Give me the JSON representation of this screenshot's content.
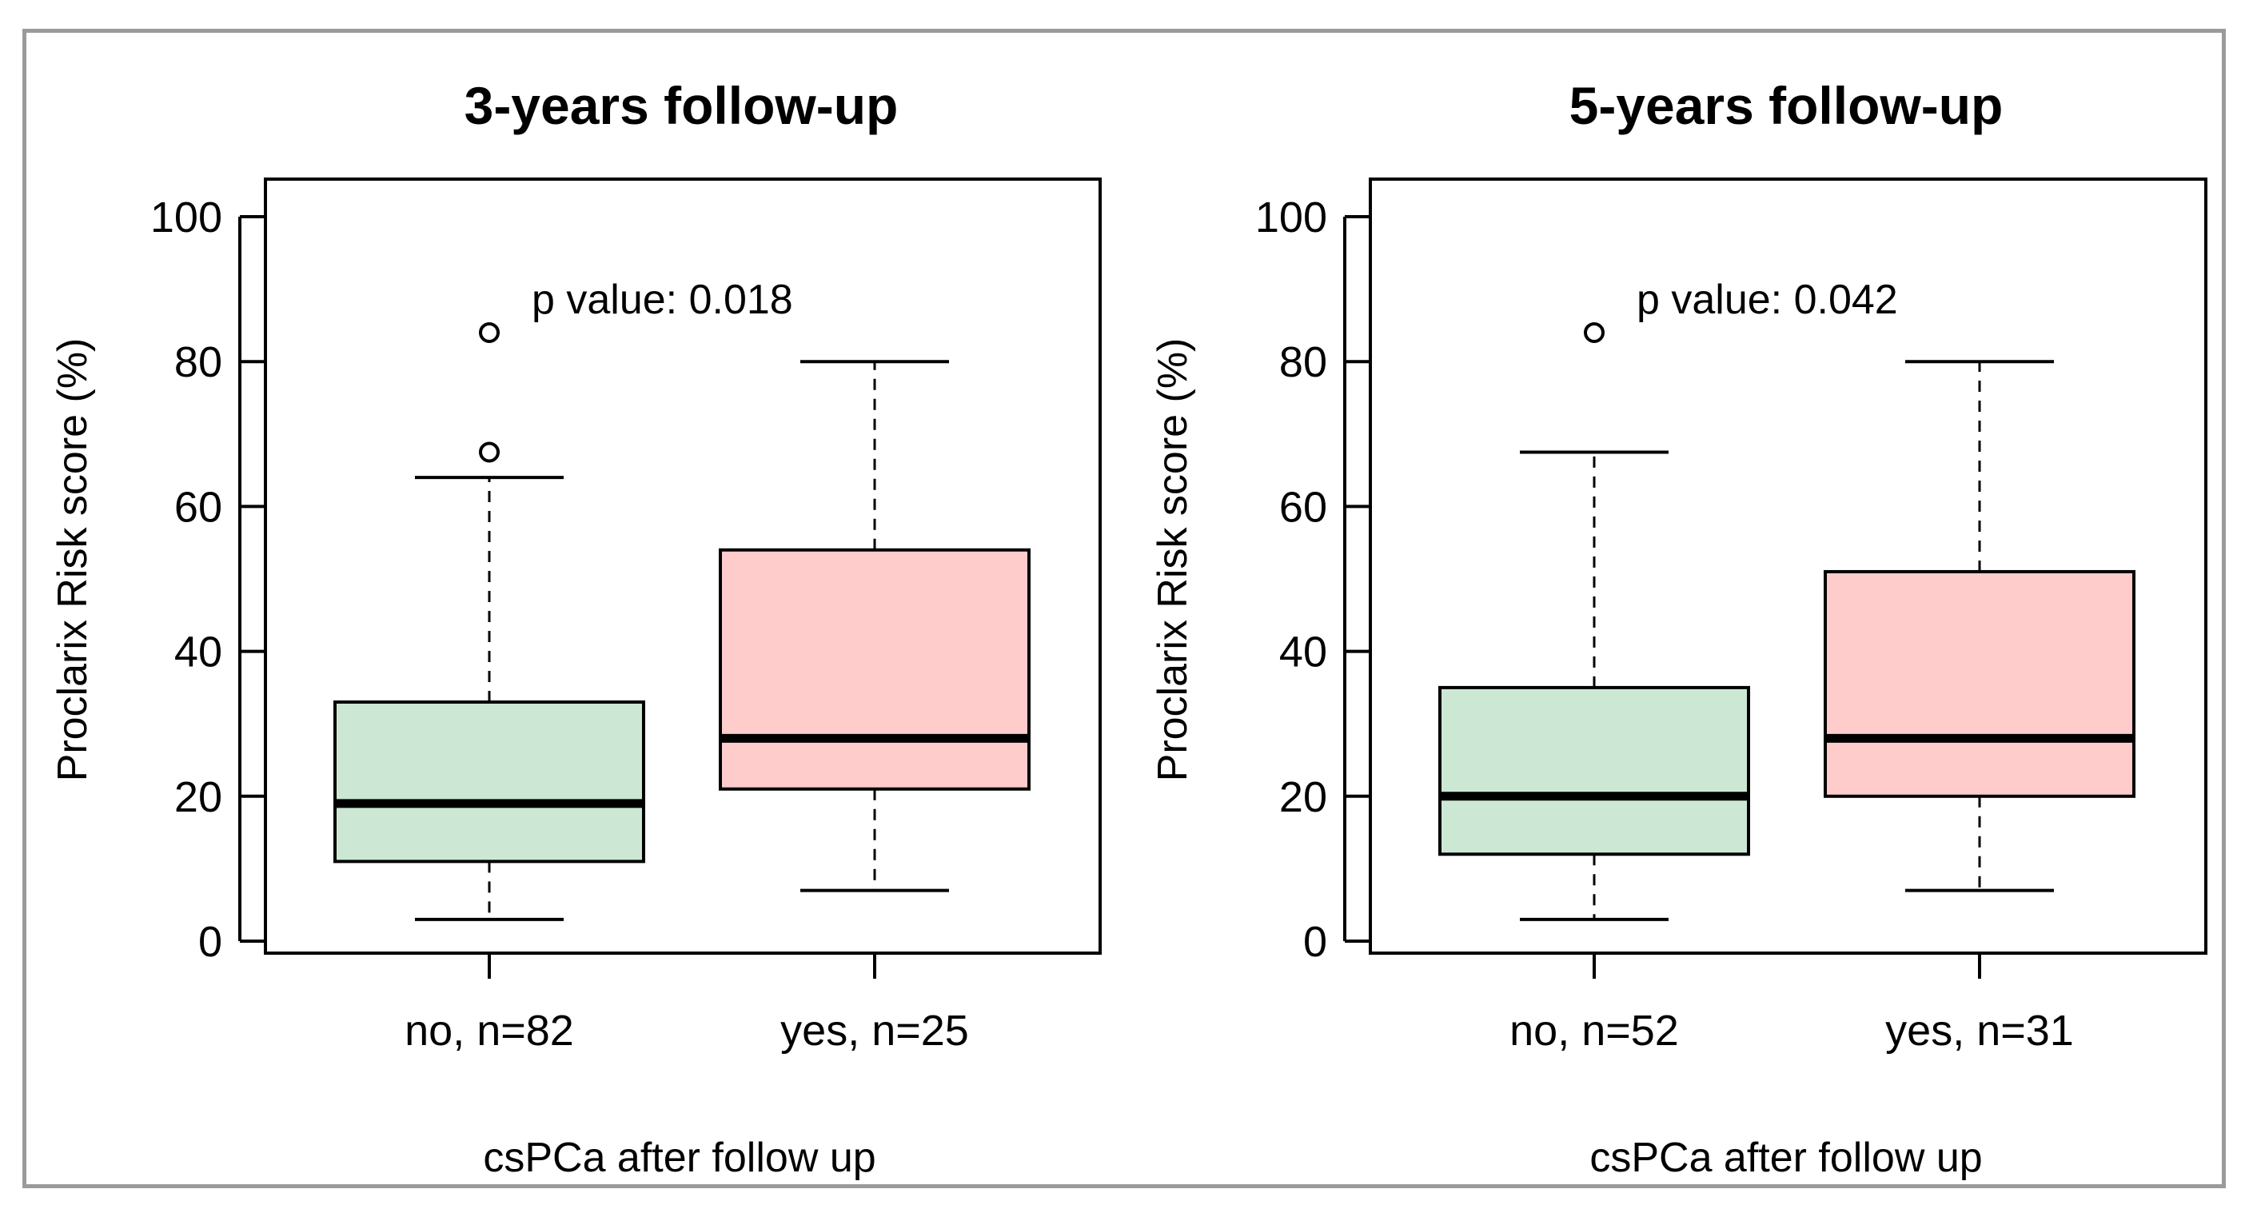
{
  "colors": {
    "no_box": "#cce8d4",
    "yes_box": "#ffcccc",
    "frame": "#9a9a9a",
    "ink": "#000000"
  },
  "chart_data": [
    {
      "type": "boxplot",
      "title": "3-years follow-up",
      "xlabel": "csPCa after follow up",
      "ylabel": "Proclarix Risk score (%)",
      "ylim": [
        0,
        100
      ],
      "yticks": [
        0,
        20,
        40,
        60,
        80,
        100
      ],
      "annotation": "p value: 0.018",
      "groups": [
        {
          "label": "no, n=82",
          "color": "#cce8d4",
          "whisker_low": 3,
          "q1": 11,
          "median": 19,
          "q3": 33,
          "whisker_high": 64,
          "outliers": [
            67.5,
            84
          ]
        },
        {
          "label": "yes, n=25",
          "color": "#ffcccc",
          "whisker_low": 7,
          "q1": 21,
          "median": 28,
          "q3": 54,
          "whisker_high": 80,
          "outliers": []
        }
      ]
    },
    {
      "type": "boxplot",
      "title": "5-years follow-up",
      "xlabel": "csPCa after follow up",
      "ylabel": "Proclarix Risk score (%)",
      "ylim": [
        0,
        100
      ],
      "yticks": [
        0,
        20,
        40,
        60,
        80,
        100
      ],
      "annotation": "p value: 0.042",
      "groups": [
        {
          "label": "no, n=52",
          "color": "#cce8d4",
          "whisker_low": 3,
          "q1": 12,
          "median": 20,
          "q3": 35,
          "whisker_high": 67.5,
          "outliers": [
            84
          ]
        },
        {
          "label": "yes, n=31",
          "color": "#ffcccc",
          "whisker_low": 7,
          "q1": 20,
          "median": 28,
          "q3": 51,
          "whisker_high": 80,
          "outliers": []
        }
      ]
    }
  ]
}
